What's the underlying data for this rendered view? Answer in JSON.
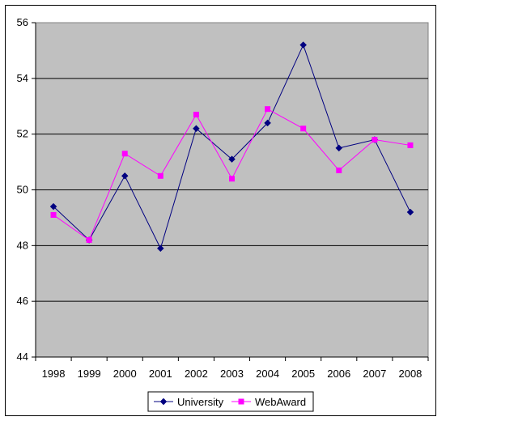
{
  "chart_data": {
    "type": "line",
    "categories": [
      "1998",
      "1999",
      "2000",
      "2001",
      "2002",
      "2003",
      "2004",
      "2005",
      "2006",
      "2007",
      "2008"
    ],
    "series": [
      {
        "name": "University",
        "color": "#000080",
        "marker": "diamond",
        "values": [
          49.4,
          48.2,
          50.5,
          47.9,
          52.2,
          51.1,
          52.4,
          55.2,
          51.5,
          51.8,
          49.2
        ]
      },
      {
        "name": "WebAward",
        "color": "#FF00FF",
        "marker": "square",
        "values": [
          49.1,
          48.2,
          51.3,
          50.5,
          52.7,
          50.4,
          52.9,
          52.2,
          50.7,
          51.8,
          51.6
        ]
      }
    ],
    "title": "",
    "xlabel": "",
    "ylabel": "",
    "ylim": [
      44,
      56
    ],
    "yticks": [
      "44",
      "46",
      "48",
      "50",
      "52",
      "54",
      "56"
    ],
    "grid": true,
    "plot_background": "#C0C0C0",
    "legend_position": "bottom"
  }
}
